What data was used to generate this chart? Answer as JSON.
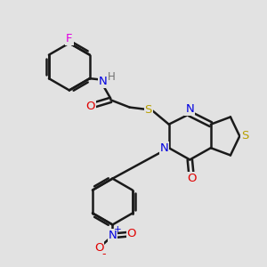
{
  "background_color": "#e2e2e2",
  "bond_color": "#1a1a1a",
  "bond_width": 1.8,
  "atom_colors": {
    "F": "#e000e0",
    "N": "#0000e0",
    "O": "#e00000",
    "S": "#b8a000",
    "H": "#707070",
    "C": "#1a1a1a"
  },
  "font_size": 9.5,
  "fig_size": [
    3.0,
    3.0
  ],
  "dpi": 100
}
